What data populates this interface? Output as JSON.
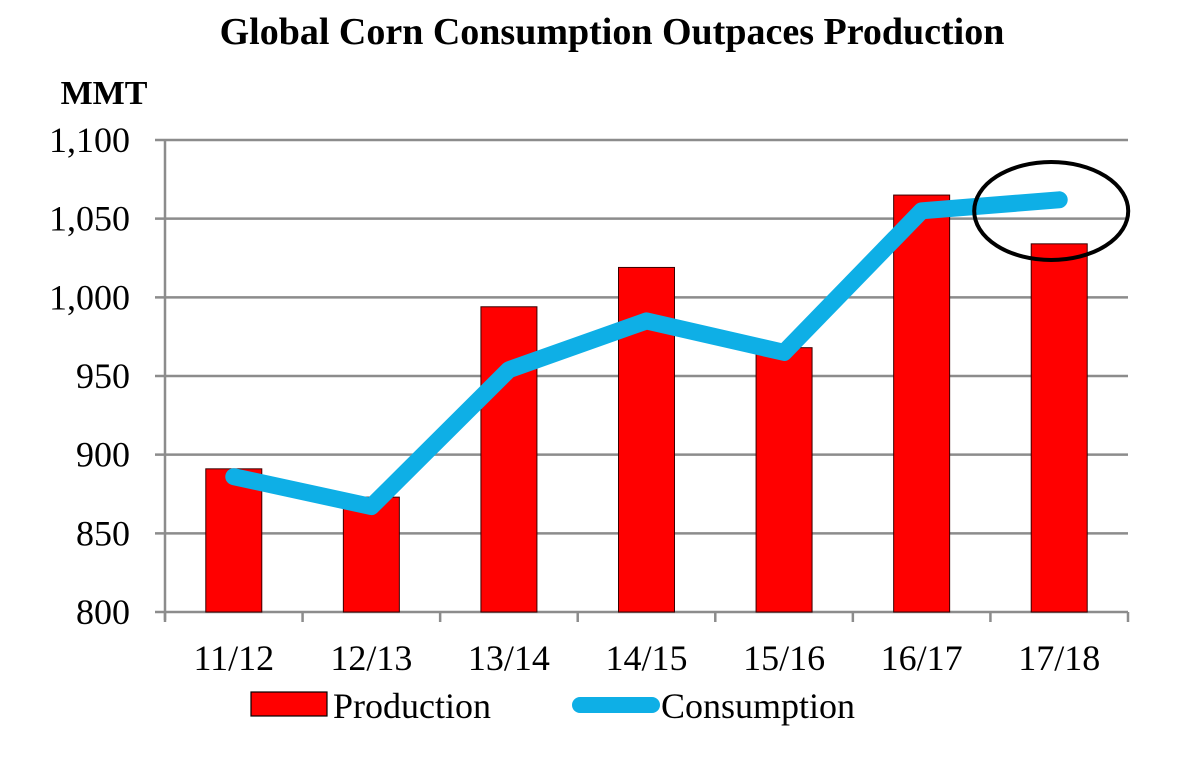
{
  "chart_data": {
    "type": "bar",
    "title": "Global Corn Consumption Outpaces Production",
    "ylabel": "MMT",
    "xlabel": "",
    "categories": [
      "11/12",
      "12/13",
      "13/14",
      "14/15",
      "15/16",
      "16/17",
      "17/18"
    ],
    "ylim": [
      800,
      1100
    ],
    "yticks": [
      800,
      850,
      900,
      950,
      1000,
      1050,
      1100
    ],
    "ytick_labels": [
      "800",
      "850",
      "900",
      "950",
      "1,000",
      "1,050",
      "1,100"
    ],
    "grid": true,
    "series": [
      {
        "name": "Production",
        "type": "bar",
        "color": "#ff0000",
        "values": [
          891,
          873,
          994,
          1019,
          968,
          1065,
          1034
        ]
      },
      {
        "name": "Consumption",
        "type": "line",
        "color": "#0eafe6",
        "values": [
          886,
          867,
          954,
          985,
          965,
          1055,
          1062
        ]
      }
    ],
    "annotations": [
      {
        "type": "ellipse",
        "category": "17/18",
        "description": "circle highlighting 17/18 consumption above production"
      }
    ],
    "legend": {
      "placement": "bottom",
      "entries": [
        "Production",
        "Consumption"
      ]
    }
  }
}
